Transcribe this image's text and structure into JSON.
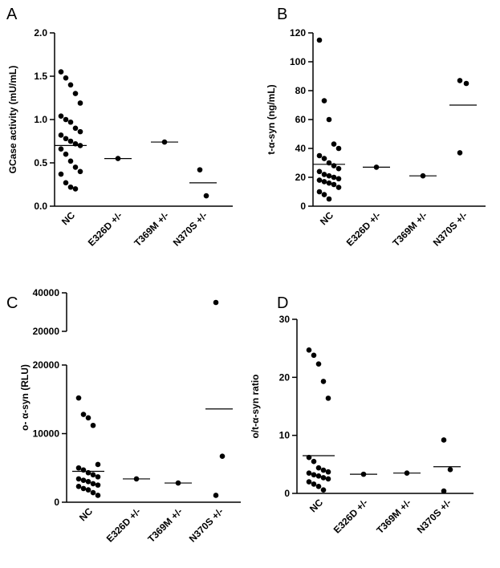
{
  "chart_data": [
    {
      "type": "dot",
      "panel_label": "A",
      "ylabel": "GCase activity (mU/mL)",
      "categories": [
        "NC",
        "E326D +/-",
        "T369M +/-",
        "N370S +/-"
      ],
      "groups": [
        [
          1.55,
          1.48,
          1.4,
          1.3,
          1.19,
          1.04,
          1.0,
          0.97,
          0.9,
          0.86,
          0.82,
          0.78,
          0.75,
          0.72,
          0.7,
          0.66,
          0.6,
          0.52,
          0.45,
          0.4,
          0.37,
          0.27,
          0.22,
          0.2
        ],
        [
          0.55
        ],
        [
          0.74
        ],
        [
          0.42,
          0.12
        ]
      ],
      "means": [
        0.7,
        0.55,
        0.74,
        0.27
      ],
      "ylim": [
        0,
        2.0
      ],
      "yticks": [
        {
          "value": 0,
          "label": "0.0"
        },
        0.5,
        {
          "value": 1,
          "label": "1.0"
        },
        1.5,
        {
          "value": 2,
          "label": "2.0"
        }
      ]
    },
    {
      "type": "dot",
      "panel_label": "B",
      "ylabel": "t-α-syn (ng/mL)",
      "categories": [
        "NC",
        "E326D +/-",
        "T369M +/-",
        "N370S +/-"
      ],
      "groups": [
        [
          115,
          73,
          60,
          43,
          40,
          35,
          33,
          30,
          28,
          26,
          24,
          22,
          21,
          20,
          19,
          18,
          17,
          16,
          15,
          13,
          10,
          8,
          5
        ],
        [
          27
        ],
        [
          21
        ],
        [
          87,
          85,
          37
        ]
      ],
      "means": [
        29,
        27,
        21,
        70
      ],
      "ylim": [
        0,
        120
      ],
      "yticks": [
        0,
        20,
        40,
        60,
        80,
        100,
        120
      ]
    },
    {
      "type": "dot",
      "panel_label": "C",
      "ylabel": "o- α-syn (RLU)",
      "categories": [
        "NC",
        "E326D +/-",
        "T369M +/-",
        "N370S +/-"
      ],
      "groups": [
        [
          15200,
          12800,
          12300,
          11200,
          5500,
          5000,
          4700,
          4300,
          4000,
          3700,
          3400,
          3200,
          3000,
          2700,
          2500,
          2300,
          2000,
          1800,
          1400,
          1000
        ],
        [
          3400
        ],
        [
          2800
        ],
        [
          35000,
          6700,
          1000
        ]
      ],
      "means": [
        4500,
        3400,
        2800,
        13600
      ],
      "ylim": [
        0,
        20000
      ],
      "yticks": [
        0,
        10000,
        20000
      ],
      "ylim_upper": [
        20000,
        40000
      ],
      "yticks_upper": [
        20000,
        40000
      ]
    },
    {
      "type": "dot",
      "panel_label": "D",
      "ylabel": "o/t-α-syn ratio",
      "categories": [
        "NC",
        "E326D +/-",
        "T369M +/-",
        "N370S +/-"
      ],
      "groups": [
        [
          24.7,
          23.8,
          22.3,
          19.3,
          16.4,
          6.2,
          5.5,
          4.4,
          4.0,
          3.7,
          3.5,
          3.2,
          3.0,
          2.7,
          2.5,
          2.0,
          1.6,
          1.2,
          0.6
        ],
        [
          3.3
        ],
        [
          3.5
        ],
        [
          9.2,
          4.1,
          0.4
        ]
      ],
      "means": [
        6.5,
        3.3,
        3.5,
        4.6
      ],
      "ylim": [
        0,
        30
      ],
      "yticks": [
        0,
        10,
        20,
        30
      ]
    }
  ]
}
